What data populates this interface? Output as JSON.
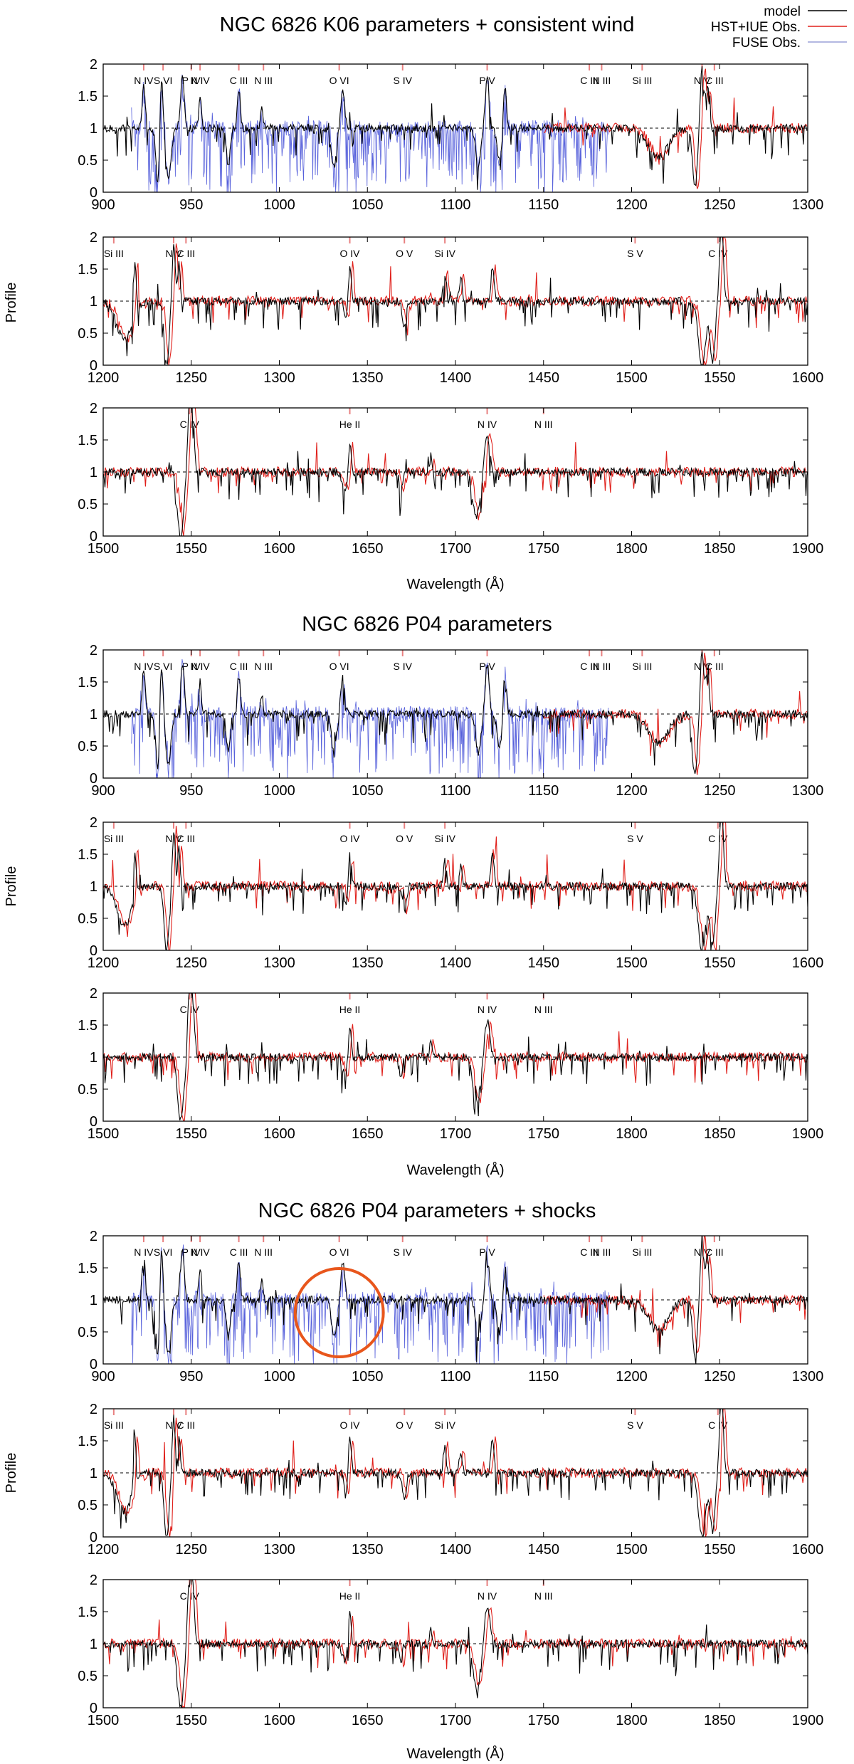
{
  "legend": {
    "entries": [
      {
        "label": "model",
        "color": "#000000"
      },
      {
        "label": "HST+IUE Obs.",
        "color": "#e0201b"
      },
      {
        "label": "FUSE Obs.",
        "color": "#9aa0d8"
      }
    ]
  },
  "colors": {
    "model": "#000000",
    "hst": "#e0201b",
    "fuse": "#1f2ccf",
    "highlight_circle": "#e8561c",
    "ion_marker": "#e88080"
  },
  "chart_data": [
    {
      "type": "line",
      "title": "NGC 6826 K06 parameters + consistent wind",
      "ylabel": "Profile",
      "xlabel": "Wavelength (Å)",
      "panels": [
        {
          "xlim": [
            900,
            1300
          ],
          "ylim": [
            0,
            2
          ],
          "xticks": [
            "900",
            "950",
            "1000",
            "1050",
            "1100",
            "1150",
            "1200",
            "1250",
            "1300"
          ],
          "yticks": [
            "0",
            "0.5",
            "1",
            "1.5",
            "2"
          ],
          "series": [
            "model",
            "FUSE Obs.",
            "HST+IUE Obs."
          ],
          "ions": [
            {
              "label": "N IV",
              "wave": 923
            },
            {
              "label": "S VI",
              "wave": 934
            },
            {
              "label": "P IV",
              "wave": 950
            },
            {
              "label": "N IV",
              "wave": 955
            },
            {
              "label": "C III",
              "wave": 977
            },
            {
              "label": "N III",
              "wave": 991
            },
            {
              "label": "O VI",
              "wave": 1034
            },
            {
              "label": "S IV",
              "wave": 1070
            },
            {
              "label": "P V",
              "wave": 1118
            },
            {
              "label": "C III",
              "wave": 1176
            },
            {
              "label": "N III",
              "wave": 1183
            },
            {
              "label": "Si III",
              "wave": 1206
            },
            {
              "label": "N V",
              "wave": 1240
            },
            {
              "label": "C III",
              "wave": 1247
            }
          ]
        },
        {
          "xlim": [
            1200,
            1600
          ],
          "ylim": [
            0,
            2
          ],
          "xticks": [
            "1200",
            "1250",
            "1300",
            "1350",
            "1400",
            "1450",
            "1500",
            "1550",
            "1600"
          ],
          "yticks": [
            "0",
            "0.5",
            "1",
            "1.5",
            "2"
          ],
          "series": [
            "model",
            "HST+IUE Obs."
          ],
          "ions": [
            {
              "label": "Si III",
              "wave": 1206
            },
            {
              "label": "N V",
              "wave": 1240
            },
            {
              "label": "C III",
              "wave": 1247
            },
            {
              "label": "O IV",
              "wave": 1340
            },
            {
              "label": "O V",
              "wave": 1371
            },
            {
              "label": "Si IV",
              "wave": 1394
            },
            {
              "label": "S V",
              "wave": 1502
            },
            {
              "label": "C IV",
              "wave": 1549
            }
          ]
        },
        {
          "xlim": [
            1500,
            1900
          ],
          "ylim": [
            0,
            2
          ],
          "xticks": [
            "1500",
            "1550",
            "1600",
            "1650",
            "1700",
            "1750",
            "1800",
            "1850",
            "1900"
          ],
          "yticks": [
            "0",
            "0.5",
            "1",
            "1.5",
            "2"
          ],
          "series": [
            "model",
            "HST+IUE Obs."
          ],
          "ions": [
            {
              "label": "C IV",
              "wave": 1549
            },
            {
              "label": "He II",
              "wave": 1640
            },
            {
              "label": "N IV",
              "wave": 1718
            },
            {
              "label": "N III",
              "wave": 1750
            }
          ]
        }
      ]
    },
    {
      "type": "line",
      "title": "NGC 6826 P04 parameters",
      "ylabel": "Profile",
      "xlabel": "Wavelength (Å)",
      "panels": [
        {
          "xlim": [
            900,
            1300
          ],
          "ylim": [
            0,
            2
          ],
          "xticks": [
            "900",
            "950",
            "1000",
            "1050",
            "1100",
            "1150",
            "1200",
            "1250",
            "1300"
          ],
          "yticks": [
            "0",
            "0.5",
            "1",
            "1.5",
            "2"
          ],
          "series": [
            "model",
            "FUSE Obs.",
            "HST+IUE Obs."
          ],
          "ions": [
            {
              "label": "N IV",
              "wave": 923
            },
            {
              "label": "S VI",
              "wave": 934
            },
            {
              "label": "P IV",
              "wave": 950
            },
            {
              "label": "N IV",
              "wave": 955
            },
            {
              "label": "C III",
              "wave": 977
            },
            {
              "label": "N III",
              "wave": 991
            },
            {
              "label": "O VI",
              "wave": 1034
            },
            {
              "label": "S IV",
              "wave": 1070
            },
            {
              "label": "P V",
              "wave": 1118
            },
            {
              "label": "C III",
              "wave": 1176
            },
            {
              "label": "N III",
              "wave": 1183
            },
            {
              "label": "Si III",
              "wave": 1206
            },
            {
              "label": "N V",
              "wave": 1240
            },
            {
              "label": "C III",
              "wave": 1247
            }
          ]
        },
        {
          "xlim": [
            1200,
            1600
          ],
          "ylim": [
            0,
            2
          ],
          "xticks": [
            "1200",
            "1250",
            "1300",
            "1350",
            "1400",
            "1450",
            "1500",
            "1550",
            "1600"
          ],
          "yticks": [
            "0",
            "0.5",
            "1",
            "1.5",
            "2"
          ],
          "series": [
            "model",
            "HST+IUE Obs."
          ],
          "ions": [
            {
              "label": "Si III",
              "wave": 1206
            },
            {
              "label": "N V",
              "wave": 1240
            },
            {
              "label": "C III",
              "wave": 1247
            },
            {
              "label": "O IV",
              "wave": 1340
            },
            {
              "label": "O V",
              "wave": 1371
            },
            {
              "label": "Si IV",
              "wave": 1394
            },
            {
              "label": "S V",
              "wave": 1502
            },
            {
              "label": "C IV",
              "wave": 1549
            }
          ]
        },
        {
          "xlim": [
            1500,
            1900
          ],
          "ylim": [
            0,
            2
          ],
          "xticks": [
            "1500",
            "1550",
            "1600",
            "1650",
            "1700",
            "1750",
            "1800",
            "1850",
            "1900"
          ],
          "yticks": [
            "0",
            "0.5",
            "1",
            "1.5",
            "2"
          ],
          "series": [
            "model",
            "HST+IUE Obs."
          ],
          "ions": [
            {
              "label": "C IV",
              "wave": 1549
            },
            {
              "label": "He II",
              "wave": 1640
            },
            {
              "label": "N IV",
              "wave": 1718
            },
            {
              "label": "N III",
              "wave": 1750
            }
          ]
        }
      ]
    },
    {
      "type": "line",
      "title": "NGC 6826 P04 parameters + shocks",
      "ylabel": "Profile",
      "xlabel": "Wavelength (Å)",
      "highlight": {
        "shape": "circle",
        "center_wave": 1034,
        "center_profile": 0.8,
        "note": "O VI region"
      },
      "panels": [
        {
          "xlim": [
            900,
            1300
          ],
          "ylim": [
            0,
            2
          ],
          "xticks": [
            "900",
            "950",
            "1000",
            "1050",
            "1100",
            "1150",
            "1200",
            "1250",
            "1300"
          ],
          "yticks": [
            "0",
            "0.5",
            "1",
            "1.5",
            "2"
          ],
          "series": [
            "model",
            "FUSE Obs.",
            "HST+IUE Obs."
          ],
          "ions": [
            {
              "label": "N IV",
              "wave": 923
            },
            {
              "label": "S VI",
              "wave": 934
            },
            {
              "label": "P IV",
              "wave": 950
            },
            {
              "label": "N IV",
              "wave": 955
            },
            {
              "label": "C III",
              "wave": 977
            },
            {
              "label": "N III",
              "wave": 991
            },
            {
              "label": "O VI",
              "wave": 1034
            },
            {
              "label": "S IV",
              "wave": 1070
            },
            {
              "label": "P V",
              "wave": 1118
            },
            {
              "label": "C III",
              "wave": 1176
            },
            {
              "label": "N III",
              "wave": 1183
            },
            {
              "label": "Si III",
              "wave": 1206
            },
            {
              "label": "N V",
              "wave": 1240
            },
            {
              "label": "C III",
              "wave": 1247
            }
          ]
        },
        {
          "xlim": [
            1200,
            1600
          ],
          "ylim": [
            0,
            2
          ],
          "xticks": [
            "1200",
            "1250",
            "1300",
            "1350",
            "1400",
            "1450",
            "1500",
            "1550",
            "1600"
          ],
          "yticks": [
            "0",
            "0.5",
            "1",
            "1.5",
            "2"
          ],
          "series": [
            "model",
            "HST+IUE Obs."
          ],
          "ions": [
            {
              "label": "Si III",
              "wave": 1206
            },
            {
              "label": "N V",
              "wave": 1240
            },
            {
              "label": "C III",
              "wave": 1247
            },
            {
              "label": "O IV",
              "wave": 1340
            },
            {
              "label": "O V",
              "wave": 1371
            },
            {
              "label": "Si IV",
              "wave": 1394
            },
            {
              "label": "S V",
              "wave": 1502
            },
            {
              "label": "C IV",
              "wave": 1549
            }
          ]
        },
        {
          "xlim": [
            1500,
            1900
          ],
          "ylim": [
            0,
            2
          ],
          "xticks": [
            "1500",
            "1550",
            "1600",
            "1650",
            "1700",
            "1750",
            "1800",
            "1850",
            "1900"
          ],
          "yticks": [
            "0",
            "0.5",
            "1",
            "1.5",
            "2"
          ],
          "series": [
            "model",
            "HST+IUE Obs."
          ],
          "ions": [
            {
              "label": "C IV",
              "wave": 1549
            },
            {
              "label": "He II",
              "wave": 1640
            },
            {
              "label": "N IV",
              "wave": 1718
            },
            {
              "label": "N III",
              "wave": 1750
            }
          ]
        }
      ]
    }
  ]
}
